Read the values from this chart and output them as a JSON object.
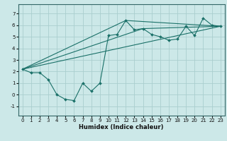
{
  "xlabel": "Humidex (Indice chaleur)",
  "background_color": "#cce8e8",
  "grid_color": "#aacece",
  "line_color": "#1a7068",
  "xlim": [
    -0.5,
    23.5
  ],
  "ylim": [
    -1.8,
    7.8
  ],
  "xticks": [
    0,
    1,
    2,
    3,
    4,
    5,
    6,
    7,
    8,
    9,
    10,
    11,
    12,
    13,
    14,
    15,
    16,
    17,
    18,
    19,
    20,
    21,
    22,
    23
  ],
  "yticks": [
    -1,
    0,
    1,
    2,
    3,
    4,
    5,
    6,
    7
  ],
  "series1_x": [
    0,
    1,
    2,
    3,
    4,
    5,
    6,
    7,
    8,
    9,
    10,
    11,
    12,
    13,
    14,
    15,
    16,
    17,
    18,
    19,
    20,
    21,
    22,
    23
  ],
  "series1_y": [
    2.2,
    1.9,
    1.9,
    1.3,
    0.0,
    -0.4,
    -0.5,
    1.0,
    0.3,
    1.0,
    5.1,
    5.2,
    6.4,
    5.6,
    5.7,
    5.2,
    5.0,
    4.7,
    4.8,
    5.9,
    5.1,
    6.6,
    6.0,
    5.9
  ],
  "series2_x": [
    0,
    23
  ],
  "series2_y": [
    2.2,
    5.9
  ],
  "series3_x": [
    0,
    12,
    23
  ],
  "series3_y": [
    2.2,
    6.4,
    5.9
  ],
  "series4_x": [
    0,
    14,
    23
  ],
  "series4_y": [
    2.2,
    5.7,
    5.9
  ],
  "xlabel_fontsize": 6,
  "tick_fontsize": 5
}
